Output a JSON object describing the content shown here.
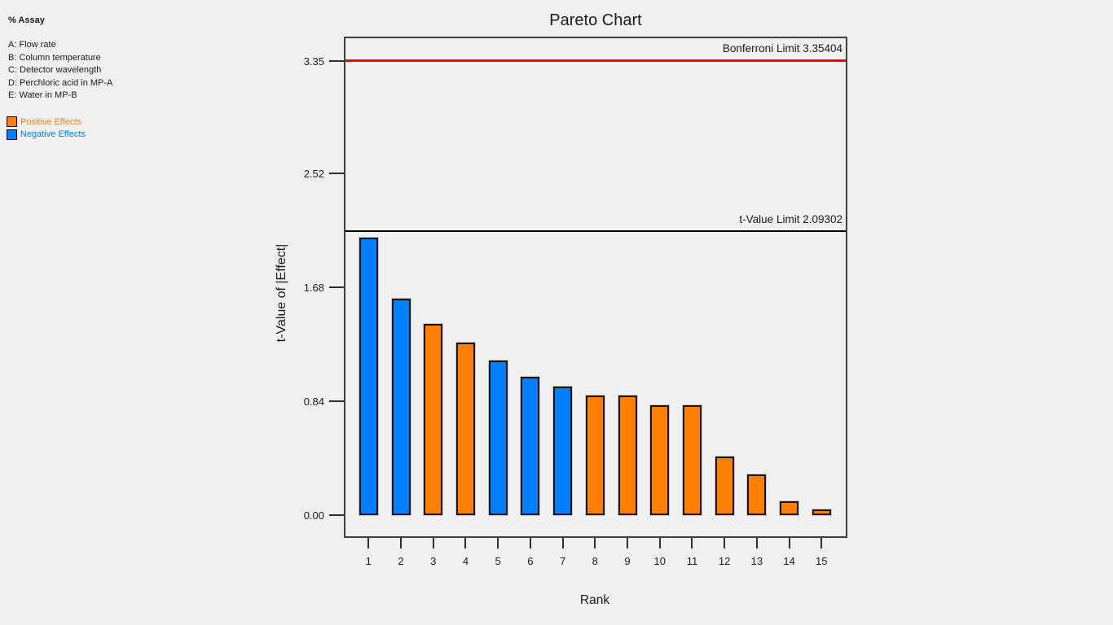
{
  "sidebar": {
    "response_label": "% Assay",
    "factors": [
      "A: Flow rate",
      "B: Column temperature",
      "C: Detector wavelength",
      "D: Perchloric acid in MP-A",
      "E: Water in MP-B"
    ],
    "legend": [
      {
        "key": "positive",
        "label": "Positive Effects",
        "color": "#ff8000"
      },
      {
        "key": "negative",
        "label": "Negative Effects",
        "color": "#0080ff"
      }
    ]
  },
  "chart_data": {
    "type": "bar",
    "title": "Pareto Chart",
    "xlabel": "Rank",
    "ylabel": "t-Value of |Effect|",
    "categories": [
      1,
      2,
      3,
      4,
      5,
      6,
      7,
      8,
      9,
      10,
      11,
      12,
      13,
      14,
      15
    ],
    "values": [
      2.05,
      1.6,
      1.41,
      1.27,
      1.14,
      1.02,
      0.95,
      0.88,
      0.88,
      0.81,
      0.81,
      0.43,
      0.3,
      0.1,
      0.04
    ],
    "effects": [
      "negative",
      "negative",
      "positive",
      "positive",
      "negative",
      "negative",
      "negative",
      "positive",
      "positive",
      "positive",
      "positive",
      "positive",
      "positive",
      "positive",
      "positive"
    ],
    "colors": {
      "positive": "#ff8000",
      "negative": "#0080ff"
    },
    "ytick_labels": [
      "0.00",
      "0.84",
      "1.68",
      "2.52",
      "3.35"
    ],
    "ytick_values": [
      0.0,
      0.84,
      1.68,
      2.52,
      3.35
    ],
    "ylim": [
      -0.17,
      3.53
    ],
    "grid": false,
    "legend_position": "top-left-panel",
    "limit_lines": [
      {
        "label": "Bonferroni Limit 3.35404",
        "value": 3.35404,
        "color": "#ff0000",
        "thickness": 3
      },
      {
        "label": "t-Value Limit 2.09302",
        "value": 2.09302,
        "color": "#000000",
        "thickness": 2
      }
    ]
  }
}
